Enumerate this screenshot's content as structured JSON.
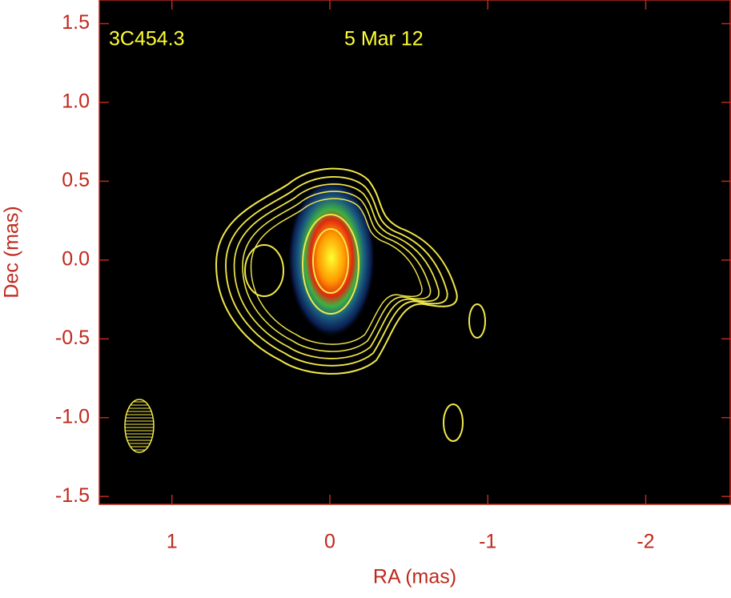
{
  "chart_data": {
    "type": "image",
    "annotations": [
      "3C454.3",
      "5 Mar 12"
    ],
    "xlabel": "RA (mas)",
    "ylabel": "Dec (mas)",
    "xlim": [
      1.46,
      -2.54
    ],
    "ylim": [
      -1.55,
      1.65
    ],
    "xticks": [
      1,
      0,
      -1,
      -2
    ],
    "yticks": [
      1.5,
      {
        "value": 1,
        "label": "1.0"
      },
      0.5,
      {
        "value": 0,
        "label": "0.0"
      },
      -0.5,
      {
        "value": -1,
        "label": "-1.0"
      },
      -1.5
    ],
    "axis_color": "#c0281c",
    "annotation_color": "#ffff33",
    "background": "#000000"
  }
}
